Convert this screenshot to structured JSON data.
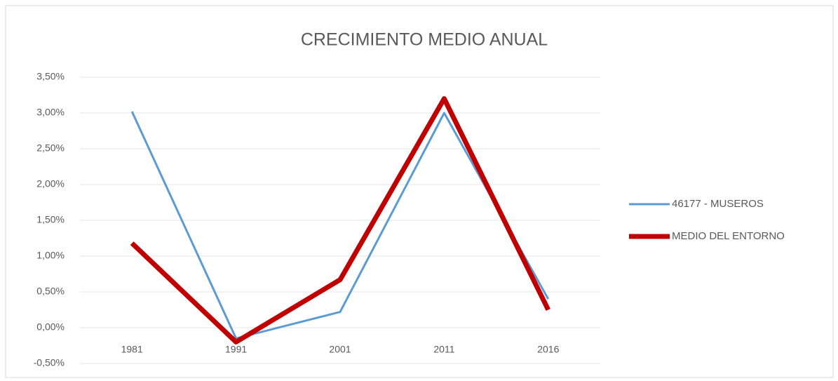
{
  "chart_data": {
    "type": "line",
    "title": "CRECIMIENTO MEDIO ANUAL",
    "categories": [
      "1981",
      "1991",
      "2001",
      "2011",
      "2016"
    ],
    "series": [
      {
        "name": "46177 - MUSEROS",
        "color": "#5b9bd5",
        "values": [
          3.02,
          -0.15,
          0.22,
          3.0,
          0.4
        ]
      },
      {
        "name": "MEDIO DEL ENTORNO",
        "color": "#c00000",
        "values": [
          1.18,
          -0.2,
          0.67,
          3.2,
          0.25
        ]
      }
    ],
    "ylim": [
      -0.5,
      3.5
    ],
    "yticks": [
      {
        "value": -0.5,
        "label": "-0,50%"
      },
      {
        "value": 0,
        "label": "0,00%"
      },
      {
        "value": 0.5,
        "label": "0,50%"
      },
      {
        "value": 1,
        "label": "1,00%"
      },
      {
        "value": 1.5,
        "label": "1,50%"
      },
      {
        "value": 2,
        "label": "2,00%"
      },
      {
        "value": 2.5,
        "label": "2,50%"
      },
      {
        "value": 3,
        "label": "3,00%"
      },
      {
        "value": 3.5,
        "label": "3,50%"
      }
    ],
    "grid": true,
    "legend": "right"
  }
}
